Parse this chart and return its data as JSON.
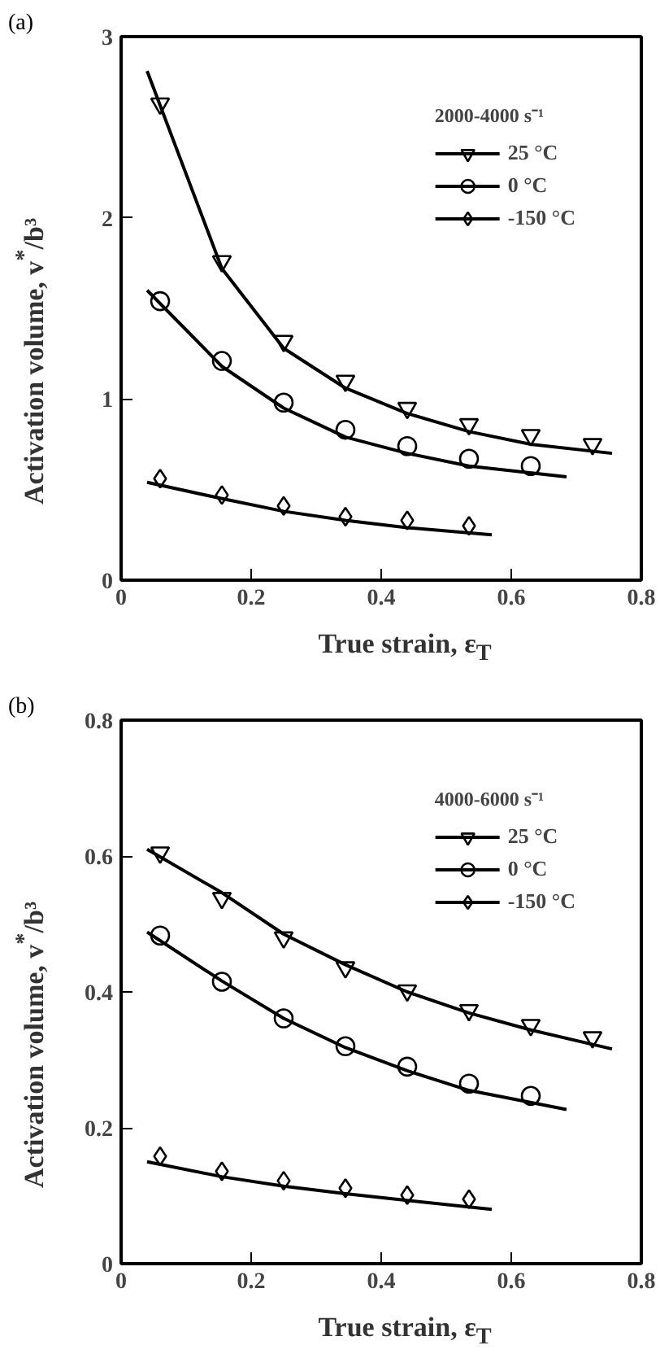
{
  "chart_data": [
    {
      "type": "scatter",
      "annotations": [
        "(a)"
      ],
      "legend_title": "2000-4000 s⁻¹",
      "xlabel": "True strain, ε$_{T}$",
      "ylabel": "Activation volume, v$^{*}$/b³",
      "xlim": [
        0,
        0.8
      ],
      "ylim": [
        0,
        3
      ],
      "xticks": [
        0,
        0.2,
        0.4,
        0.6,
        0.8
      ],
      "yticks": [
        0,
        1,
        2,
        3
      ],
      "grid": false,
      "legend": "top right",
      "series": [
        {
          "name": "25 °C",
          "marker": "triangle",
          "color": "#000000",
          "x": [
            0.06,
            0.155,
            0.25,
            0.345,
            0.44,
            0.535,
            0.63,
            0.725
          ],
          "values": [
            2.63,
            1.76,
            1.32,
            1.1,
            0.95,
            0.86,
            0.8,
            0.75
          ]
        },
        {
          "type": "line",
          "marker": "none",
          "color": "#000000",
          "x": [
            0.04,
            0.155,
            0.25,
            0.345,
            0.44,
            0.535,
            0.63,
            0.755
          ],
          "values": [
            2.81,
            1.72,
            1.28,
            1.06,
            0.92,
            0.82,
            0.75,
            0.7
          ]
        },
        {
          "name": "0 °C",
          "marker": "circle",
          "color": "#000000",
          "x": [
            0.06,
            0.155,
            0.25,
            0.345,
            0.44,
            0.535,
            0.63
          ],
          "values": [
            1.54,
            1.21,
            0.98,
            0.83,
            0.74,
            0.67,
            0.63
          ]
        },
        {
          "type": "line",
          "marker": "none",
          "color": "#000000",
          "x": [
            0.04,
            0.155,
            0.25,
            0.345,
            0.44,
            0.535,
            0.685
          ],
          "values": [
            1.6,
            1.18,
            0.95,
            0.79,
            0.7,
            0.63,
            0.57
          ]
        },
        {
          "name": "-150 °C",
          "marker": "diamond",
          "color": "#000000",
          "x": [
            0.06,
            0.155,
            0.25,
            0.345,
            0.44,
            0.535
          ],
          "values": [
            0.56,
            0.47,
            0.41,
            0.35,
            0.33,
            0.3
          ]
        },
        {
          "type": "line",
          "marker": "none",
          "color": "#000000",
          "x": [
            0.04,
            0.155,
            0.25,
            0.345,
            0.44,
            0.57
          ],
          "values": [
            0.54,
            0.45,
            0.38,
            0.33,
            0.29,
            0.25
          ]
        }
      ]
    },
    {
      "type": "scatter",
      "annotations": [
        "(b)"
      ],
      "legend_title": "4000-6000 s⁻¹",
      "xlabel": "True strain, ε$_{T}$",
      "ylabel": "Activation volume, v$^{*}$/b³",
      "xlim": [
        0,
        0.8
      ],
      "ylim": [
        0,
        0.8
      ],
      "xticks": [
        0,
        0.2,
        0.4,
        0.6,
        0.8
      ],
      "yticks": [
        0,
        0.2,
        0.4,
        0.6,
        0.8
      ],
      "grid": false,
      "legend": "top right",
      "series": [
        {
          "name": "25 °C",
          "marker": "triangle",
          "color": "#000000",
          "x": [
            0.06,
            0.155,
            0.25,
            0.345,
            0.44,
            0.535,
            0.63,
            0.725
          ],
          "values": [
            0.605,
            0.538,
            0.48,
            0.436,
            0.402,
            0.373,
            0.351,
            0.333
          ]
        },
        {
          "type": "line",
          "marker": "none",
          "color": "#000000",
          "x": [
            0.04,
            0.155,
            0.25,
            0.345,
            0.44,
            0.535,
            0.63,
            0.755
          ],
          "values": [
            0.61,
            0.546,
            0.485,
            0.44,
            0.4,
            0.369,
            0.344,
            0.316
          ]
        },
        {
          "name": "0 °C",
          "marker": "circle",
          "color": "#000000",
          "x": [
            0.06,
            0.155,
            0.25,
            0.345,
            0.44,
            0.535,
            0.63
          ],
          "values": [
            0.483,
            0.415,
            0.361,
            0.32,
            0.29,
            0.265,
            0.247
          ]
        },
        {
          "type": "line",
          "marker": "none",
          "color": "#000000",
          "x": [
            0.04,
            0.155,
            0.25,
            0.345,
            0.44,
            0.535,
            0.685
          ],
          "values": [
            0.488,
            0.416,
            0.361,
            0.318,
            0.284,
            0.255,
            0.227
          ]
        },
        {
          "name": "-150 °C",
          "marker": "diamond",
          "color": "#000000",
          "x": [
            0.06,
            0.155,
            0.25,
            0.345,
            0.44,
            0.535
          ],
          "values": [
            0.158,
            0.136,
            0.122,
            0.111,
            0.101,
            0.095
          ]
        },
        {
          "type": "line",
          "marker": "none",
          "color": "#000000",
          "x": [
            0.04,
            0.155,
            0.25,
            0.345,
            0.44,
            0.57
          ],
          "values": [
            0.15,
            0.128,
            0.114,
            0.103,
            0.093,
            0.08
          ]
        }
      ]
    }
  ]
}
